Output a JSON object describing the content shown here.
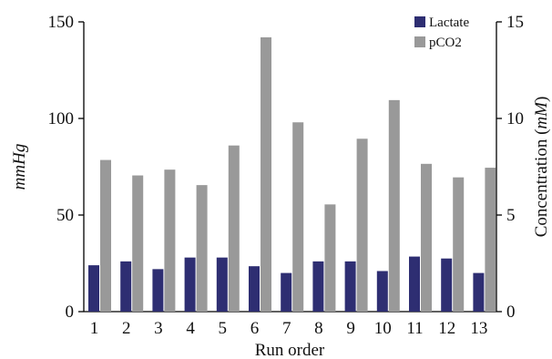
{
  "chart_data": {
    "type": "bar",
    "xlabel": "Run order",
    "ylabel_left": "mmHg",
    "ylabel_right_prefix": "Concentration (",
    "ylabel_right_unit": "mM",
    "ylabel_right_suffix": ")",
    "ylim_left": [
      0,
      150
    ],
    "ylim_right": [
      0,
      15
    ],
    "yticks_left": [
      "0",
      "50",
      "100",
      "150"
    ],
    "yticks_right": [
      "0",
      "5",
      "10",
      "15"
    ],
    "categories": [
      "1",
      "2",
      "3",
      "4",
      "5",
      "6",
      "7",
      "8",
      "9",
      "10",
      "11",
      "12",
      "13"
    ],
    "legend_position": "top-right",
    "grid": false,
    "series": [
      {
        "name": "Lactate",
        "axis": "right",
        "color": "#2e2e72",
        "values": [
          2.4,
          2.6,
          2.2,
          2.8,
          2.8,
          2.35,
          2.0,
          2.6,
          2.6,
          2.1,
          2.85,
          2.75,
          2.0
        ]
      },
      {
        "name": "pCO2",
        "axis": "left",
        "color": "#999999",
        "values": [
          78.5,
          70.5,
          73.5,
          65.5,
          86,
          142,
          98,
          55.5,
          89.5,
          109.5,
          76.5,
          69.5,
          74.5
        ]
      }
    ]
  }
}
